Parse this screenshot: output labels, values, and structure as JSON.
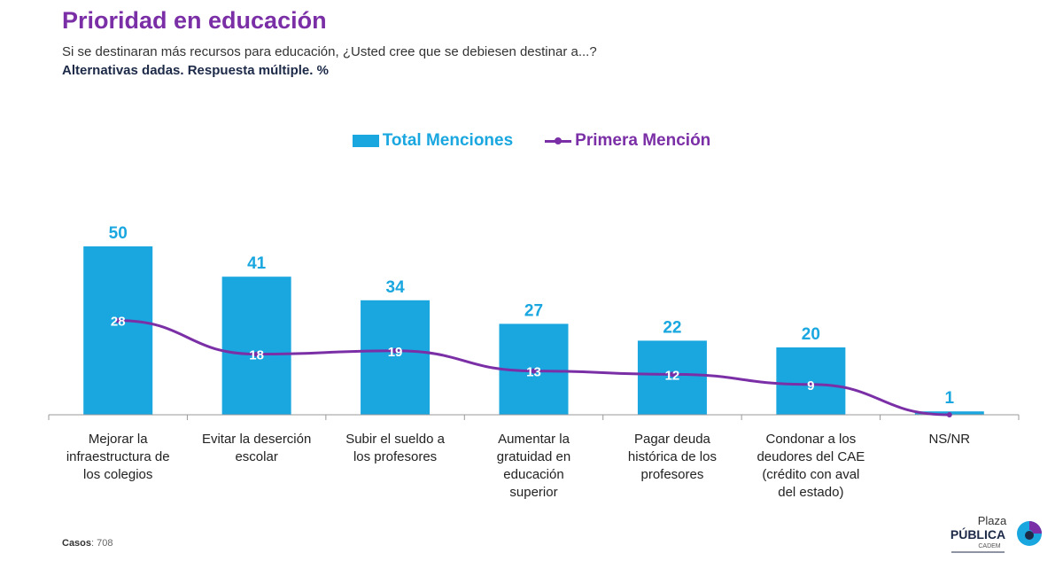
{
  "title": "Prioridad en educación",
  "subtitle": "Si se destinaran más recursos para educación, ¿Usted cree que se debiesen destinar a...?",
  "note": "Alternativas dadas. Respuesta múltiple. %",
  "legend": {
    "bar": "Total Menciones",
    "line": "Primera Mención"
  },
  "footnote": {
    "label": "Casos",
    "value": "708"
  },
  "logo": {
    "top": "Plaza",
    "middle": "PÚBLICA",
    "bottom": "CADEM"
  },
  "colors": {
    "bar": "#1aa7e0",
    "line": "#7b2fa6",
    "title": "#7b2fa6"
  },
  "chart_data": {
    "type": "bar",
    "title": "Prioridad en educación",
    "categories": [
      [
        "Mejorar la",
        "infraestructura de",
        "los colegios"
      ],
      [
        "Evitar la deserción",
        "escolar"
      ],
      [
        "Subir el sueldo a",
        "los profesores"
      ],
      [
        "Aumentar la",
        "gratuidad en",
        "educación",
        "superior"
      ],
      [
        "Pagar deuda",
        "histórica de los",
        "profesores"
      ],
      [
        "Condonar a los",
        "deudores del CAE",
        "(crédito con aval",
        "del estado)"
      ],
      [
        "NS/NR"
      ]
    ],
    "series": [
      {
        "name": "Total Menciones",
        "type": "bar",
        "values": [
          50,
          41,
          34,
          27,
          22,
          20,
          1
        ]
      },
      {
        "name": "Primera Mención",
        "type": "line",
        "values": [
          28,
          18,
          19,
          13,
          12,
          9,
          null
        ]
      }
    ],
    "ylim": [
      0,
      50
    ],
    "grid": false,
    "legend_position": "top-center"
  }
}
